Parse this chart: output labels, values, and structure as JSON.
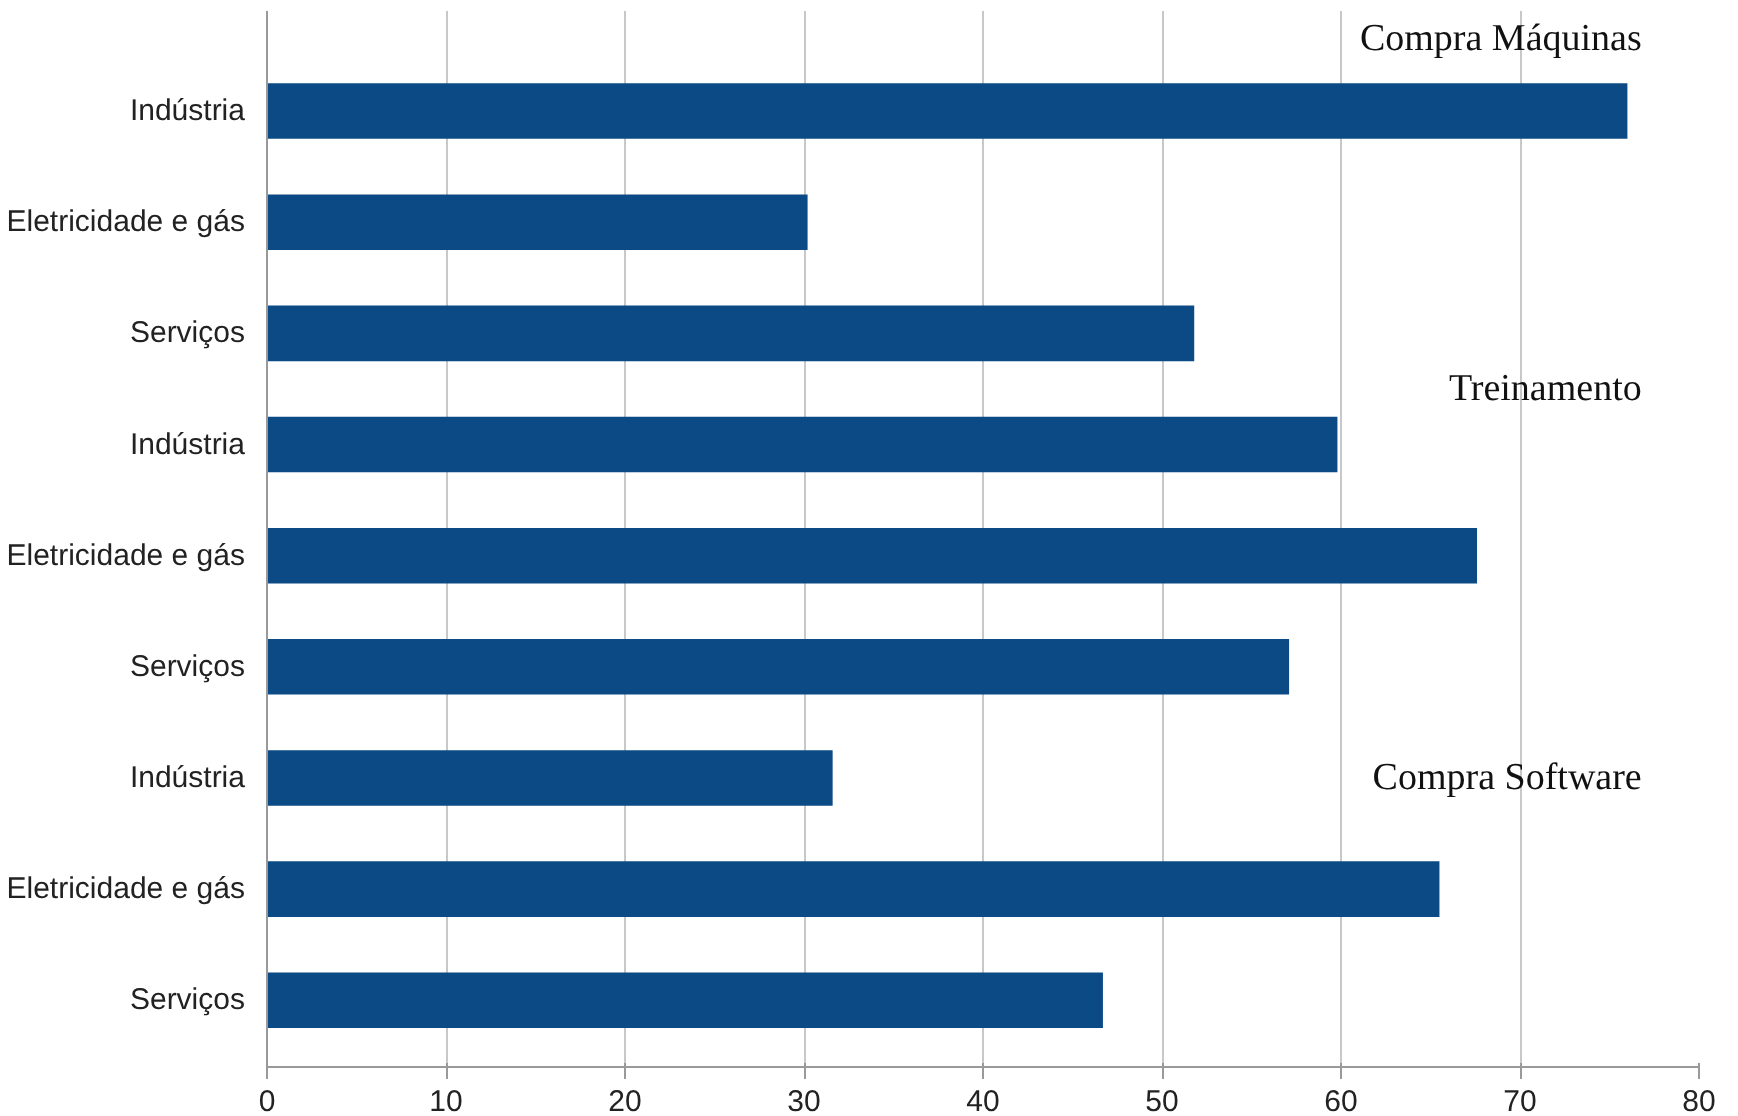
{
  "chart_data": {
    "type": "bar",
    "orientation": "horizontal",
    "categories": [
      "Indústria",
      "Eletricidade e gás",
      "Serviços",
      "Indústria",
      "Eletricidade e gás",
      "Serviços",
      "Indústria",
      "Eletricidade e gás",
      "Serviços"
    ],
    "values": [
      76,
      30.2,
      51.8,
      59.8,
      67.6,
      57.1,
      31.6,
      65.5,
      46.7
    ],
    "color": "#0c4a86",
    "xlim": [
      0,
      80
    ],
    "xticks": [
      0,
      10,
      20,
      30,
      40,
      50,
      60,
      70,
      80
    ],
    "grid": "x",
    "annotations": [
      "Compra Máquinas",
      "Treinamento",
      "Compra Software"
    ]
  }
}
